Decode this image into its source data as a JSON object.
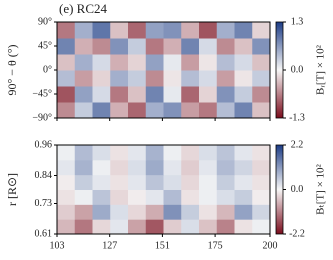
{
  "chart_data": [
    {
      "type": "heatmap",
      "title": "(e) RC24",
      "ylabel": "90° − θ (°)",
      "xlim": [
        103,
        200
      ],
      "ylim": [
        -90,
        90
      ],
      "yticks": [
        {
          "value": 90,
          "label": "90°"
        },
        {
          "value": 45,
          "label": "45°"
        },
        {
          "value": 0,
          "label": "0°"
        },
        {
          "value": -45,
          "label": "−45°"
        },
        {
          "value": -90,
          "label": "−90°"
        }
      ],
      "colorbar_label": "Bᵣ[T] × 10²",
      "clim": [
        -1.3,
        1.3
      ],
      "cticks": [
        1.3,
        {
          "value": 0,
          "label": "0.0"
        },
        -1.3
      ],
      "colors": [
        "#7a0c1c",
        "#f7f7f7",
        "#1c3c86"
      ],
      "z": [
        [
          -0.6,
          0.3,
          0.8,
          -0.4,
          -0.8,
          0.5,
          0.7,
          -0.5,
          -0.7,
          0.4,
          0.8,
          -0.3
        ],
        [
          -0.9,
          0.6,
          0.2,
          -0.7,
          -0.3,
          0.8,
          0.1,
          -0.8,
          -0.2,
          0.7,
          0.3,
          -0.6
        ],
        [
          0.4,
          -0.5,
          -0.2,
          0.5,
          0.3,
          -0.6,
          -0.1,
          0.4,
          0.2,
          -0.5,
          -0.1,
          0.3
        ],
        [
          -0.3,
          0.5,
          0.2,
          -0.4,
          -0.2,
          0.6,
          0.1,
          -0.5,
          -0.1,
          0.4,
          0.2,
          -0.3
        ],
        [
          0.8,
          -0.4,
          -0.6,
          0.7,
          0.3,
          -0.7,
          -0.4,
          0.8,
          0.2,
          -0.6,
          -0.3,
          0.7
        ],
        [
          -0.7,
          0.5,
          0.9,
          -0.3,
          -0.8,
          0.6,
          0.7,
          -0.4,
          -0.9,
          0.5,
          0.8,
          -0.2
        ]
      ]
    },
    {
      "type": "heatmap",
      "ylabel": "r [R⊙]",
      "xlim": [
        103,
        200
      ],
      "ylim": [
        0.61,
        0.96
      ],
      "xticks": [
        103,
        127,
        151,
        175,
        200
      ],
      "yticks": [
        0.96,
        0.84,
        0.73,
        0.61
      ],
      "colorbar_label": "Bₜ[T] × 10²",
      "clim": [
        -2.2,
        2.2
      ],
      "cticks": [
        2.2,
        {
          "value": 0,
          "label": "0.0"
        },
        -2.2
      ],
      "colors": [
        "#7a0c1c",
        "#f7f7f7",
        "#1c3c86"
      ],
      "z": [
        [
          -0.6,
          -1.2,
          -0.3,
          0.2,
          -0.8,
          -1.5,
          -0.4,
          0.3,
          -0.5,
          -1.1,
          -0.2,
          0.1
        ],
        [
          -0.4,
          -0.8,
          0.9,
          0.3,
          -0.3,
          -0.7,
          1.2,
          0.5,
          -0.2,
          -0.6,
          1.0,
          0.4
        ],
        [
          -0.2,
          0.1,
          0.6,
          -0.3,
          -0.1,
          0.2,
          0.7,
          -0.2,
          0.1,
          0.3,
          0.5,
          -0.1
        ],
        [
          -0.1,
          0.5,
          0.2,
          -0.2,
          0.2,
          0.6,
          0.3,
          -0.3,
          0.1,
          0.5,
          0.2,
          -0.2
        ],
        [
          0.2,
          0.8,
          0.1,
          -0.3,
          0.3,
          0.9,
          0.2,
          -0.4,
          0.2,
          0.7,
          0.4,
          -0.3
        ],
        [
          0.1,
          0.7,
          0.3,
          -0.2,
          0.2,
          0.8,
          0.1,
          -0.3,
          0.3,
          0.6,
          0.2,
          -0.2
        ]
      ]
    }
  ]
}
